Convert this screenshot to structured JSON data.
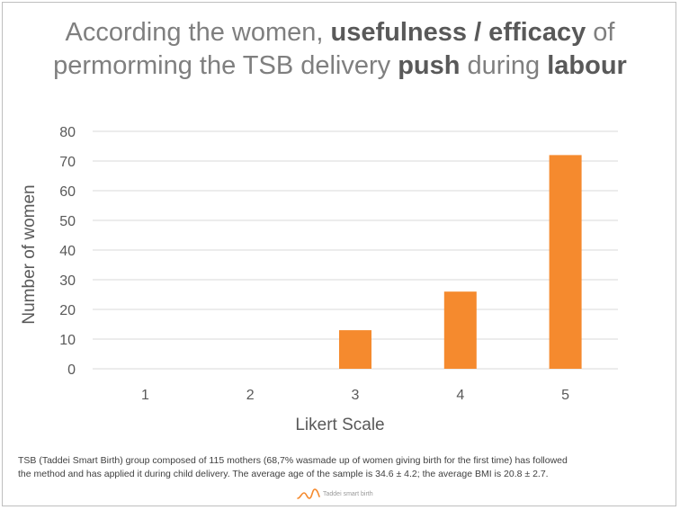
{
  "chart_data": {
    "type": "bar",
    "title": {
      "part1": "According the women, ",
      "bold1": "usefulness / efficacy",
      "part2": " of",
      "part3": "permorming the TSB delivery ",
      "bold2": "push",
      "part4": " during ",
      "bold3": "labour"
    },
    "categories": [
      "1",
      "2",
      "3",
      "4",
      "5"
    ],
    "values": [
      0,
      0,
      13,
      26,
      72
    ],
    "xlabel": "Likert Scale",
    "ylabel": "Number of women",
    "ylim": [
      0,
      80
    ],
    "yticks": [
      "0",
      "10",
      "20",
      "30",
      "40",
      "50",
      "60",
      "70",
      "80"
    ],
    "grid": true,
    "legend": "none",
    "bar_color": "#f58a2e",
    "grid_color": "#d9d9d9"
  },
  "footnote": {
    "line1": "TSB (Taddei Smart Birth) group composed of 115 mothers (68,7% wasmade up of women giving birth for the first time) has followed",
    "line2": "the method and has applied it during child delivery. The average age of the sample is 34.6 ± 4.2; the average BMI is 20.8 ± 2.7."
  },
  "logo": {
    "text": "Taddei smart birth",
    "color": "#f58a2e"
  }
}
